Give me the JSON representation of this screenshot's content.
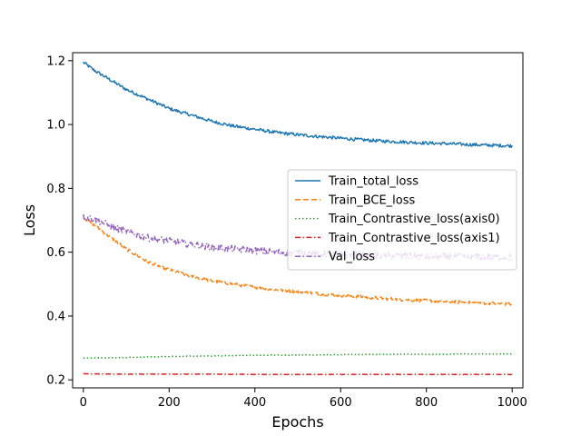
{
  "chart_data": {
    "type": "line",
    "title": "",
    "xlabel": "Epochs",
    "ylabel": "Loss",
    "xlim": [
      -25,
      1025
    ],
    "ylim": [
      0.175,
      1.225
    ],
    "xticks": [
      0,
      200,
      400,
      600,
      800,
      1000
    ],
    "yticks": [
      0.2,
      0.4,
      0.6,
      0.8,
      1.0,
      1.2
    ],
    "ytick_labels": [
      "0.2",
      "0.4",
      "0.6",
      "0.8",
      "1.0",
      "1.2"
    ],
    "grid": false,
    "legend_position": "center-right",
    "series": [
      {
        "name": "Train_total_loss",
        "color": "#1f77b4",
        "linestyle": "solid",
        "x": [
          0,
          25,
          50,
          75,
          100,
          150,
          200,
          250,
          300,
          350,
          400,
          450,
          500,
          550,
          600,
          650,
          700,
          750,
          800,
          850,
          900,
          950,
          1000
        ],
        "y": [
          1.195,
          1.17,
          1.15,
          1.13,
          1.11,
          1.08,
          1.05,
          1.03,
          1.01,
          0.995,
          0.985,
          0.975,
          0.968,
          0.962,
          0.957,
          0.952,
          0.948,
          0.945,
          0.942,
          0.94,
          0.937,
          0.935,
          0.933
        ],
        "noise": 0.005
      },
      {
        "name": "Train_BCE_loss",
        "color": "#ff7f0e",
        "linestyle": "dashed",
        "x": [
          0,
          25,
          50,
          75,
          100,
          150,
          200,
          250,
          300,
          350,
          400,
          450,
          500,
          550,
          600,
          650,
          700,
          750,
          800,
          850,
          900,
          950,
          1000
        ],
        "y": [
          0.71,
          0.685,
          0.66,
          0.635,
          0.61,
          0.57,
          0.545,
          0.525,
          0.51,
          0.5,
          0.49,
          0.482,
          0.476,
          0.47,
          0.465,
          0.46,
          0.455,
          0.451,
          0.448,
          0.445,
          0.442,
          0.44,
          0.437
        ],
        "noise": 0.005
      },
      {
        "name": "Train_Contrastive_loss(axis0)",
        "color": "#2ca02c",
        "linestyle": "dotted",
        "x": [
          0,
          100,
          200,
          300,
          400,
          500,
          600,
          700,
          800,
          900,
          1000
        ],
        "y": [
          0.268,
          0.27,
          0.273,
          0.275,
          0.277,
          0.278,
          0.279,
          0.28,
          0.28,
          0.281,
          0.281
        ],
        "noise": 0.0008
      },
      {
        "name": "Train_Contrastive_loss(axis1)",
        "color": "#d62728",
        "linestyle": "dashdot",
        "x": [
          0,
          100,
          200,
          300,
          400,
          500,
          600,
          700,
          800,
          900,
          1000
        ],
        "y": [
          0.219,
          0.218,
          0.218,
          0.218,
          0.217,
          0.217,
          0.217,
          0.217,
          0.217,
          0.217,
          0.217
        ],
        "noise": 0.0006
      },
      {
        "name": "Val_loss",
        "color": "#9467bd",
        "linestyle": "dashdot",
        "x": [
          0,
          25,
          50,
          75,
          100,
          150,
          200,
          250,
          300,
          350,
          400,
          450,
          500,
          550,
          600,
          650,
          700,
          750,
          800,
          850,
          900,
          950,
          1000
        ],
        "y": [
          0.71,
          0.705,
          0.69,
          0.675,
          0.665,
          0.645,
          0.635,
          0.625,
          0.615,
          0.61,
          0.605,
          0.6,
          0.598,
          0.595,
          0.593,
          0.591,
          0.589,
          0.588,
          0.587,
          0.586,
          0.585,
          0.585,
          0.584
        ],
        "noise": 0.011
      }
    ]
  }
}
